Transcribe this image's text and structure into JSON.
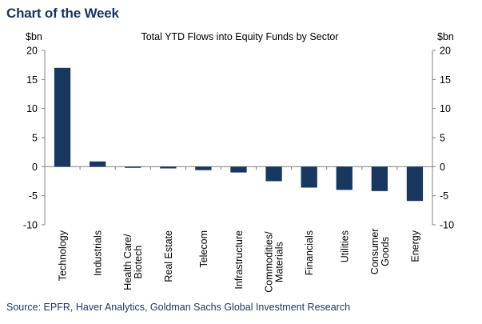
{
  "page": {
    "header": "Chart of the Week",
    "source": "Source: EPFR, Haver Analytics, Goldman Sachs Global Investment Research"
  },
  "chart_data": {
    "type": "bar",
    "title": "Total YTD Flows into Equity Funds by Sector",
    "ylabel_left": "$bn",
    "ylabel_right": "$bn",
    "ylim": [
      -10,
      20
    ],
    "yticks": [
      -10,
      -5,
      0,
      5,
      10,
      15,
      20
    ],
    "categories": [
      [
        "Technology"
      ],
      [
        "Industrials"
      ],
      [
        "Health Care/",
        "Biotech"
      ],
      [
        "Real Estate"
      ],
      [
        "Telecom"
      ],
      [
        "Infrastructure"
      ],
      [
        "Commodities/",
        "Materials"
      ],
      [
        "Financials"
      ],
      [
        "Utilities"
      ],
      [
        "Consumer",
        "Goods"
      ],
      [
        "Energy"
      ]
    ],
    "values": [
      17.0,
      0.9,
      -0.2,
      -0.3,
      -0.6,
      -1.0,
      -2.5,
      -3.6,
      -4.0,
      -4.2,
      -5.9
    ],
    "bar_color": "#17375e",
    "axis_color": "#808080"
  }
}
